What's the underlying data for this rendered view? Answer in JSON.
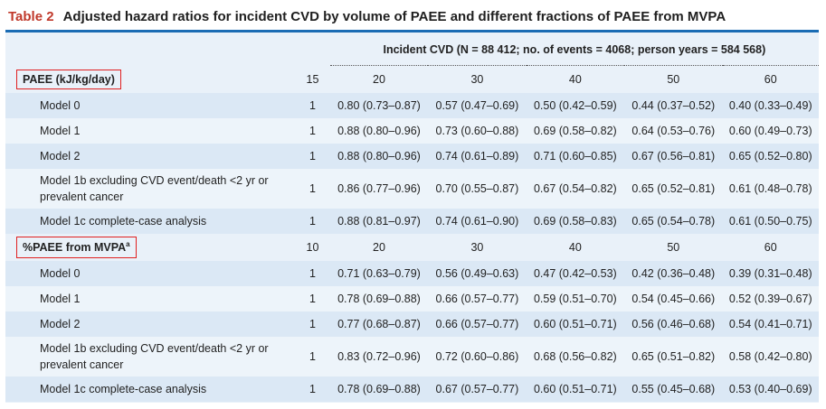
{
  "caption": {
    "label": "Table 2",
    "title": "Adjusted hazard ratios for incident CVD by volume of PAEE and different fractions of PAEE from MVPA"
  },
  "header": {
    "text": "Incident CVD (N = 88 412; no. of events = 4068; person years = 584 568)"
  },
  "sections": [
    {
      "label": "PAEE (kJ/kg/day)",
      "sup": "",
      "ref": "15",
      "levels": [
        "20",
        "30",
        "40",
        "50",
        "60"
      ],
      "rows": [
        {
          "label": "Model 0",
          "ref": "1",
          "values": [
            "0.80 (0.73–0.87)",
            "0.57 (0.47–0.69)",
            "0.50 (0.42–0.59)",
            "0.44 (0.37–0.52)",
            "0.40 (0.33–0.49)"
          ]
        },
        {
          "label": "Model 1",
          "ref": "1",
          "values": [
            "0.88 (0.80–0.96)",
            "0.73 (0.60–0.88)",
            "0.69 (0.58–0.82)",
            "0.64 (0.53–0.76)",
            "0.60 (0.49–0.73)"
          ]
        },
        {
          "label": "Model 2",
          "ref": "1",
          "values": [
            "0.88 (0.80–0.96)",
            "0.74 (0.61–0.89)",
            "0.71 (0.60–0.85)",
            "0.67 (0.56–0.81)",
            "0.65 (0.52–0.80)"
          ]
        },
        {
          "label": "Model 1b excluding CVD event/death <2 yr or prevalent cancer",
          "ref": "1",
          "values": [
            "0.86 (0.77–0.96)",
            "0.70 (0.55–0.87)",
            "0.67 (0.54–0.82)",
            "0.65 (0.52–0.81)",
            "0.61 (0.48–0.78)"
          ]
        },
        {
          "label": "Model 1c complete-case analysis",
          "ref": "1",
          "values": [
            "0.88 (0.81–0.97)",
            "0.74 (0.61–0.90)",
            "0.69 (0.58–0.83)",
            "0.65 (0.54–0.78)",
            "0.61 (0.50–0.75)"
          ]
        }
      ]
    },
    {
      "label": "%PAEE from MVPA",
      "sup": "a",
      "ref": "10",
      "levels": [
        "20",
        "30",
        "40",
        "50",
        "60"
      ],
      "rows": [
        {
          "label": "Model 0",
          "ref": "1",
          "values": [
            "0.71 (0.63–0.79)",
            "0.56 (0.49–0.63)",
            "0.47 (0.42–0.53)",
            "0.42 (0.36–0.48)",
            "0.39 (0.31–0.48)"
          ]
        },
        {
          "label": "Model 1",
          "ref": "1",
          "values": [
            "0.78 (0.69–0.88)",
            "0.66 (0.57–0.77)",
            "0.59 (0.51–0.70)",
            "0.54 (0.45–0.66)",
            "0.52 (0.39–0.67)"
          ]
        },
        {
          "label": "Model 2",
          "ref": "1",
          "values": [
            "0.77 (0.68–0.87)",
            "0.66 (0.57–0.77)",
            "0.60 (0.51–0.71)",
            "0.56 (0.46–0.68)",
            "0.54 (0.41–0.71)"
          ]
        },
        {
          "label": "Model 1b excluding CVD event/death <2 yr or prevalent cancer",
          "ref": "1",
          "values": [
            "0.83 (0.72–0.96)",
            "0.72 (0.60–0.86)",
            "0.68 (0.56–0.82)",
            "0.65 (0.51–0.82)",
            "0.58 (0.42–0.80)"
          ]
        },
        {
          "label": "Model 1c complete-case analysis",
          "ref": "1",
          "values": [
            "0.78 (0.69–0.88)",
            "0.67 (0.57–0.77)",
            "0.60 (0.51–0.71)",
            "0.55 (0.45–0.68)",
            "0.53 (0.40–0.69)"
          ]
        }
      ]
    }
  ]
}
